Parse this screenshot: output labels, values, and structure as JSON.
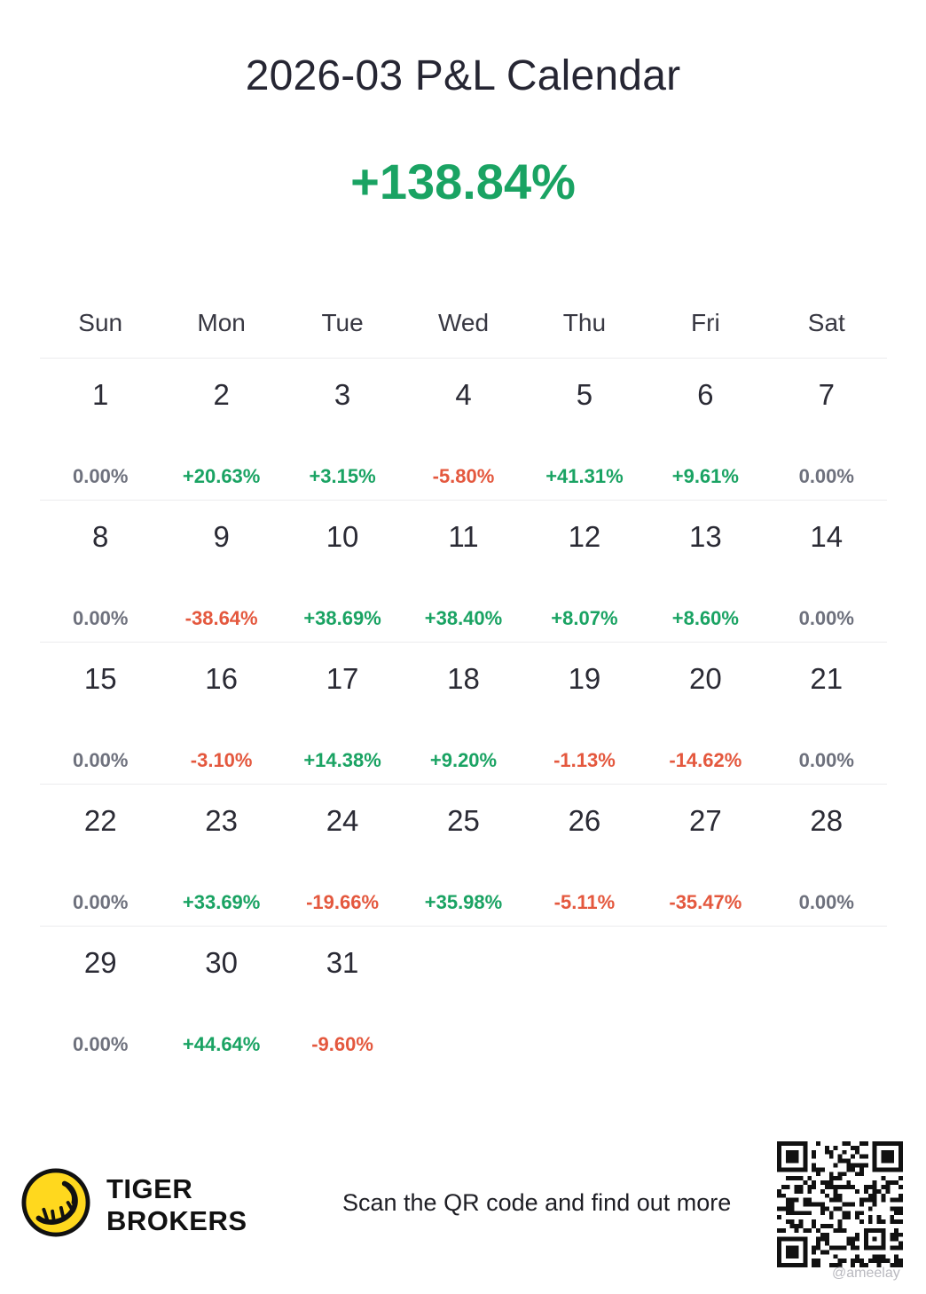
{
  "title": "2026-03 P&L Calendar",
  "total_return": "+138.84%",
  "colors": {
    "positive": "#1aa363",
    "negative": "#e4583e",
    "neutral": "#6e717d",
    "brand_yellow": "#ffd81e"
  },
  "weekdays": [
    "Sun",
    "Mon",
    "Tue",
    "Wed",
    "Thu",
    "Fri",
    "Sat"
  ],
  "weeks": [
    [
      {
        "day": "1",
        "pl": "0.00%"
      },
      {
        "day": "2",
        "pl": "+20.63%"
      },
      {
        "day": "3",
        "pl": "+3.15%"
      },
      {
        "day": "4",
        "pl": "-5.80%"
      },
      {
        "day": "5",
        "pl": "+41.31%"
      },
      {
        "day": "6",
        "pl": "+9.61%"
      },
      {
        "day": "7",
        "pl": "0.00%"
      }
    ],
    [
      {
        "day": "8",
        "pl": "0.00%"
      },
      {
        "day": "9",
        "pl": "-38.64%"
      },
      {
        "day": "10",
        "pl": "+38.69%"
      },
      {
        "day": "11",
        "pl": "+38.40%"
      },
      {
        "day": "12",
        "pl": "+8.07%"
      },
      {
        "day": "13",
        "pl": "+8.60%"
      },
      {
        "day": "14",
        "pl": "0.00%"
      }
    ],
    [
      {
        "day": "15",
        "pl": "0.00%"
      },
      {
        "day": "16",
        "pl": "-3.10%"
      },
      {
        "day": "17",
        "pl": "+14.38%"
      },
      {
        "day": "18",
        "pl": "+9.20%"
      },
      {
        "day": "19",
        "pl": "-1.13%"
      },
      {
        "day": "20",
        "pl": "-14.62%"
      },
      {
        "day": "21",
        "pl": "0.00%"
      }
    ],
    [
      {
        "day": "22",
        "pl": "0.00%"
      },
      {
        "day": "23",
        "pl": "+33.69%"
      },
      {
        "day": "24",
        "pl": "-19.66%"
      },
      {
        "day": "25",
        "pl": "+35.98%"
      },
      {
        "day": "26",
        "pl": "-5.11%"
      },
      {
        "day": "27",
        "pl": "-35.47%"
      },
      {
        "day": "28",
        "pl": "0.00%"
      }
    ],
    [
      {
        "day": "29",
        "pl": "0.00%"
      },
      {
        "day": "30",
        "pl": "+44.64%"
      },
      {
        "day": "31",
        "pl": "-9.60%"
      },
      {
        "day": "",
        "pl": ""
      },
      {
        "day": "",
        "pl": ""
      },
      {
        "day": "",
        "pl": ""
      },
      {
        "day": "",
        "pl": ""
      }
    ]
  ],
  "footer": {
    "brand_line1": "TIGER",
    "brand_line2": "BROKERS",
    "logo_icon": "tiger-logo-icon",
    "scan_text": "Scan the QR code and find out more",
    "qr_icon": "qr-code-icon",
    "watermark": "@ameelay"
  }
}
